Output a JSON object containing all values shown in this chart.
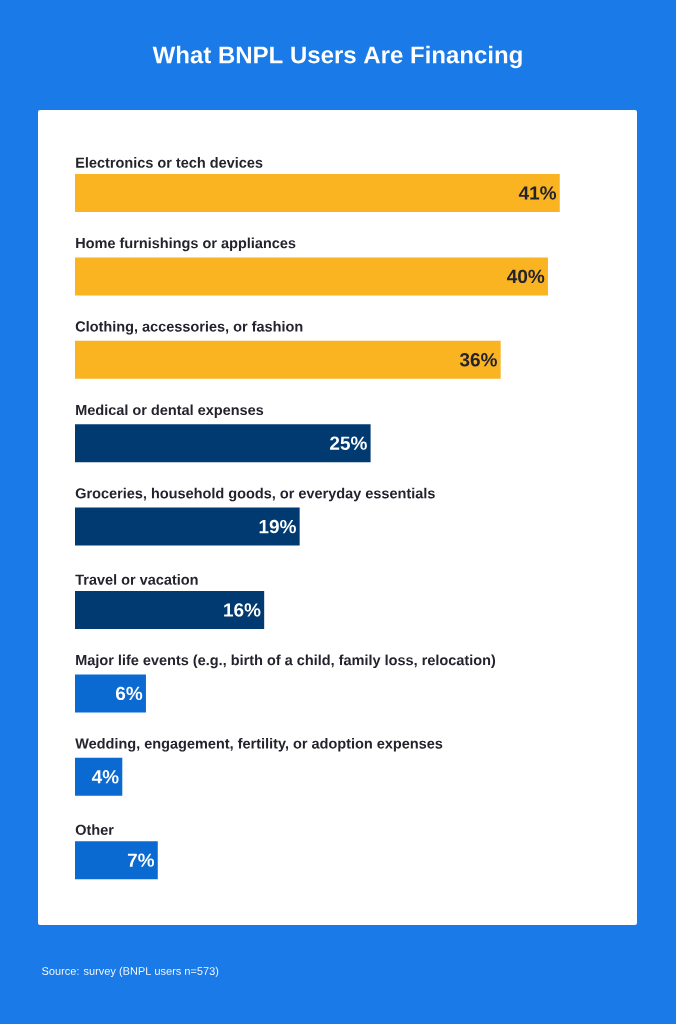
{
  "chart_data": {
    "type": "bar",
    "orientation": "horizontal",
    "title": "What BNPL Users Are Financing",
    "categories": [
      "Electronics or tech devices",
      "Home furnishings or appliances",
      "Clothing, accessories, or fashion",
      "Medical or dental expenses",
      "Groceries, household goods, or everyday essentials",
      "Travel or vacation",
      "Major life events (e.g., birth of a child, family loss, relocation)",
      "Wedding, engagement, fertility, or adoption expenses",
      "Other"
    ],
    "values": [
      41,
      40,
      36,
      25,
      19,
      16,
      6,
      4,
      7
    ],
    "value_labels": [
      "41%",
      "40%",
      "36%",
      "25%",
      "19%",
      "16%",
      "6%",
      "4%",
      "7%"
    ],
    "colors": [
      "#fbb421",
      "#fbb421",
      "#fbb421",
      "#003a70",
      "#003a70",
      "#003a70",
      "#0a6ad2",
      "#0a6ad2",
      "#0a6ad2"
    ],
    "annotations": [
      "Source: survey (BNPL users n=573)"
    ]
  }
}
